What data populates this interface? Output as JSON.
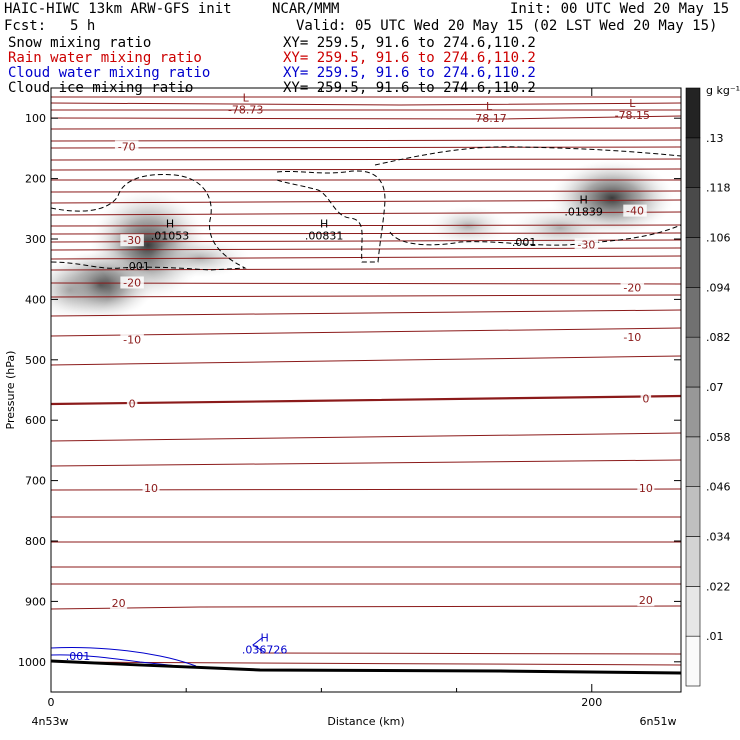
{
  "header": {
    "title": "HAIC-HIWC 13km ARW-GFS init",
    "org": "NCAR/MMM",
    "init": "Init: 00 UTC Wed 20 May 15",
    "fcst_label": "Fcst:",
    "fcst_value": "5 h",
    "valid": "Valid: 05 UTC Wed 20 May 15 (02 LST Wed 20 May 15)",
    "fields": [
      {
        "name": "Snow mixing ratio",
        "xy": "XY= 259.5, 91.6 to 274.6,110.2",
        "color": "#000000"
      },
      {
        "name": "Rain water mixing ratio",
        "xy": "XY= 259.5, 91.6 to 274.6,110.2",
        "color": "#cc0000"
      },
      {
        "name": "Cloud water mixing ratio",
        "xy": "XY= 259.5, 91.6 to 274.6,110.2",
        "color": "#0000cc"
      },
      {
        "name": "Cloud ice mixing ratio",
        "xy": "XY= 259.5, 91.6 to 274.6,110.2",
        "color": "#000000"
      }
    ]
  },
  "chart_data": {
    "type": "contour cross-section",
    "xlabel": "Distance (km)",
    "ylabel": "Pressure (hPa)",
    "xlim": [
      0,
      233
    ],
    "ylim": [
      1050,
      50
    ],
    "x_ticks": [
      0,
      200
    ],
    "x_minor_ticks": [
      50,
      100,
      150
    ],
    "y_ticks": [
      100,
      200,
      300,
      400,
      500,
      600,
      700,
      800,
      900,
      1000
    ],
    "left_endpoint": "4n53w",
    "right_endpoint": "6n51w",
    "colorbar": {
      "unit": "g kg⁻¹",
      "ticks": [
        ".01",
        ".022",
        ".034",
        ".046",
        ".058",
        ".07",
        ".082",
        ".094",
        ".106",
        ".118",
        ".13"
      ]
    },
    "temperature_contours": {
      "color": "#8b1a1a",
      "labeled": [
        {
          "value": "-70",
          "x": 28,
          "p": 147
        },
        {
          "value": "-40",
          "x": 216,
          "p": 253
        },
        {
          "value": "-30",
          "x": 30,
          "p": 302
        },
        {
          "value": "-30",
          "x": 198,
          "p": 309
        },
        {
          "value": "-20",
          "x": 30,
          "p": 372
        },
        {
          "value": "-20",
          "x": 215,
          "p": 380
        },
        {
          "value": "-10",
          "x": 30,
          "p": 466
        },
        {
          "value": "-10",
          "x": 215,
          "p": 462
        },
        {
          "value": "0",
          "x": 30,
          "p": 572
        },
        {
          "value": "0",
          "x": 220,
          "p": 564
        },
        {
          "value": "10",
          "x": 37,
          "p": 712
        },
        {
          "value": "10",
          "x": 220,
          "p": 712
        },
        {
          "value": "20",
          "x": 25,
          "p": 903
        },
        {
          "value": "20",
          "x": 220,
          "p": 898
        }
      ]
    },
    "extrema": [
      {
        "kind": "L",
        "value": "-78.73",
        "x": 72,
        "p": 74,
        "color": "#8b1a1a"
      },
      {
        "kind": "L",
        "value": "-78.17",
        "x": 162,
        "p": 88,
        "color": "#8b1a1a"
      },
      {
        "kind": "L",
        "value": "-78.15",
        "x": 215,
        "p": 83,
        "color": "#8b1a1a"
      },
      {
        "kind": "H",
        "value": ".01053",
        "x": 44,
        "p": 283,
        "color": "#000000"
      },
      {
        "kind": "H",
        "value": ".00831",
        "x": 101,
        "p": 283,
        "color": "#000000"
      },
      {
        "kind": "H",
        "value": ".01839",
        "x": 197,
        "p": 243,
        "color": "#000000"
      },
      {
        "kind": "H",
        "value": ".036726",
        "x": 79,
        "p": 968,
        "color": "#0000cc"
      }
    ],
    "contour_labels": [
      {
        "text": ".001",
        "x": 32,
        "p": 345,
        "color": "#000000"
      },
      {
        "text": ".001",
        "x": 175,
        "p": 305,
        "color": "#000000"
      },
      {
        "text": ".001",
        "x": 10,
        "p": 990,
        "color": "#0000cc"
      }
    ]
  }
}
